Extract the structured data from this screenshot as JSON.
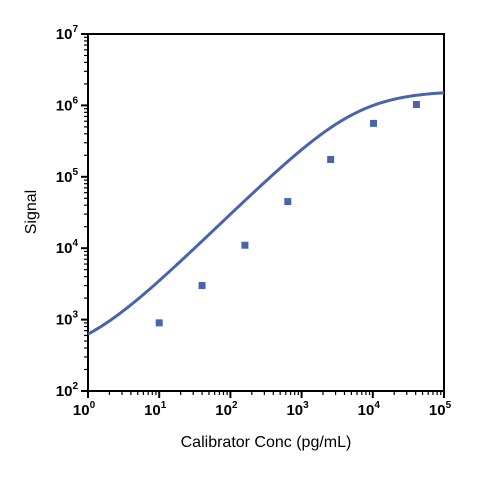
{
  "chart_data": {
    "type": "line",
    "title": "",
    "xlabel": "Calibrator Conc (pg/mL)",
    "ylabel": "Signal",
    "x_scale": "log",
    "y_scale": "log",
    "xlim": [
      1,
      100000
    ],
    "ylim": [
      100,
      10000000
    ],
    "x_ticks": [
      {
        "base": "10",
        "exp": "0",
        "value": 1
      },
      {
        "base": "10",
        "exp": "1",
        "value": 10
      },
      {
        "base": "10",
        "exp": "2",
        "value": 100
      },
      {
        "base": "10",
        "exp": "3",
        "value": 1000
      },
      {
        "base": "10",
        "exp": "4",
        "value": 10000
      },
      {
        "base": "10",
        "exp": "5",
        "value": 100000
      }
    ],
    "y_ticks": [
      {
        "base": "10",
        "exp": "2",
        "value": 100
      },
      {
        "base": "10",
        "exp": "3",
        "value": 1000
      },
      {
        "base": "10",
        "exp": "4",
        "value": 10000
      },
      {
        "base": "10",
        "exp": "5",
        "value": 100000
      },
      {
        "base": "10",
        "exp": "6",
        "value": 1000000
      },
      {
        "base": "10",
        "exp": "7",
        "value": 10000000
      }
    ],
    "grid": false,
    "legend": "none",
    "series": [
      {
        "color": "#4a63ad",
        "marker": "square",
        "points": [
          {
            "x": 10,
            "y": 900
          },
          {
            "x": 40,
            "y": 3000
          },
          {
            "x": 160,
            "y": 11000
          },
          {
            "x": 640,
            "y": 45000
          },
          {
            "x": 2560,
            "y": 175000
          },
          {
            "x": 10240,
            "y": 560000
          },
          {
            "x": 41000,
            "y": 1030000
          }
        ],
        "fit": {
          "model": "4PL",
          "bottom": 280,
          "top": 1600000,
          "ec50": 6000,
          "hill": 0.97
        }
      }
    ]
  }
}
